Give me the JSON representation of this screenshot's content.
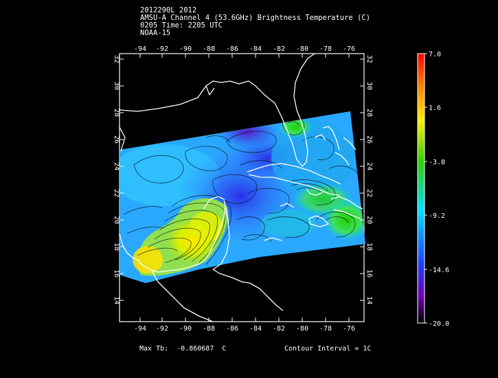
{
  "header": {
    "line1": "2012290L 2012",
    "line2": "AMSU-A Channel 4 (53.6GHz) Brightness Temperature (C)",
    "line3": "0205 Time: 2205 UTC",
    "line4": "NOAA-15"
  },
  "map": {
    "lon_ticks": [
      "-94",
      "-92",
      "-90",
      "-88",
      "-86",
      "-84",
      "-82",
      "-80",
      "-78",
      "-76"
    ],
    "lat_ticks": [
      "32",
      "30",
      "28",
      "26",
      "24",
      "22",
      "20",
      "18",
      "16",
      "14"
    ],
    "lon_range": [
      -95.8,
      -75.6
    ],
    "lat_range": [
      12.5,
      32.4
    ]
  },
  "colorbar": {
    "labels": [
      "7.0",
      "1.6",
      "-3.8",
      "-9.2",
      "-14.6",
      "-20.0"
    ],
    "colors": [
      "#ff0000",
      "#ffb000",
      "#ffff00",
      "#30d000",
      "#00e8ff",
      "#3050ff",
      "#5000b0",
      "#000000"
    ]
  },
  "footer": {
    "max_tb_label": "Max Tb:",
    "max_tb_value": "-0.860687",
    "max_tb_unit": "C",
    "contour_label": "Contour Interval = 1C"
  }
}
